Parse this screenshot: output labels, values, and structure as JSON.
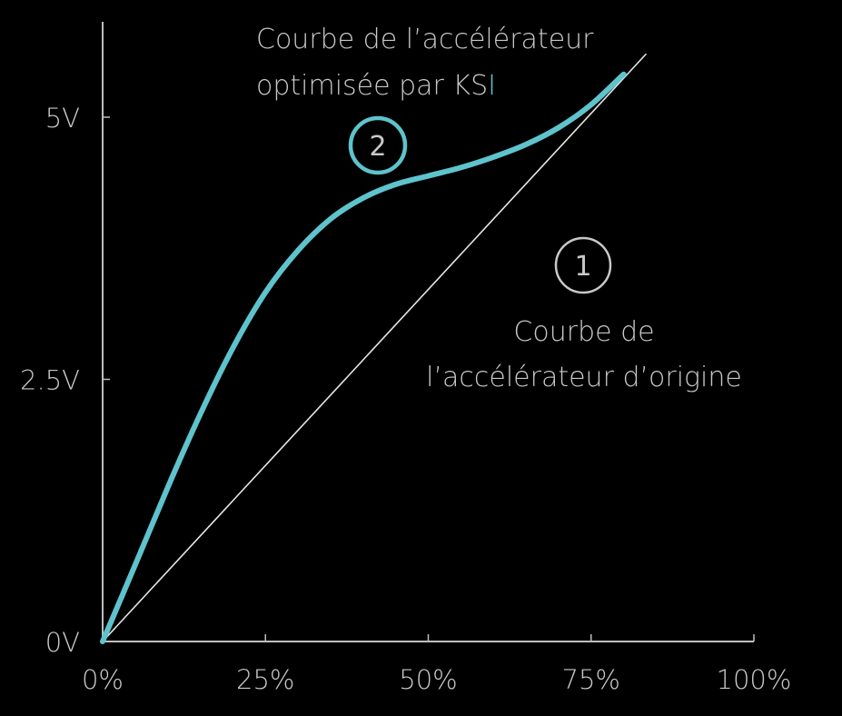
{
  "chart_data": {
    "type": "line",
    "title": "",
    "xlabel": "",
    "ylabel": "",
    "xlim": [
      0,
      100
    ],
    "ylim": [
      0,
      5.5
    ],
    "x_ticks": [
      {
        "value": 0,
        "label": "0%"
      },
      {
        "value": 25,
        "label": "25%"
      },
      {
        "value": 50,
        "label": "50%"
      },
      {
        "value": 75,
        "label": "75%"
      },
      {
        "value": 100,
        "label": "100%"
      }
    ],
    "y_ticks": [
      {
        "value": 0,
        "label": "0V"
      },
      {
        "value": 2.5,
        "label": "2.5V"
      },
      {
        "value": 5,
        "label": "5V"
      }
    ],
    "grid": false,
    "series": [
      {
        "id": "original",
        "color": "#e6e6e6",
        "x": [
          0,
          83.4
        ],
        "y": [
          0,
          5.6
        ]
      },
      {
        "id": "ksi",
        "color": "#5ec3cc",
        "x": [
          0,
          5,
          10,
          15,
          20,
          25,
          30,
          35,
          40,
          45,
          50,
          55,
          60,
          65,
          70,
          75,
          80
        ],
        "y": [
          0,
          0.73,
          1.47,
          2.17,
          2.8,
          3.33,
          3.73,
          4.03,
          4.23,
          4.36,
          4.44,
          4.52,
          4.62,
          4.74,
          4.9,
          5.12,
          5.41
        ]
      }
    ],
    "annotations": [
      {
        "id": "original",
        "badge": "1",
        "color": "#c8c8c8",
        "lines": [
          "Courbe de",
          "l’accélérateur d’origine"
        ]
      },
      {
        "id": "ksi",
        "badge": "2",
        "color": "#5ec3cc",
        "lines": [
          "Courbe de l’accélérateur",
          "optimisée par KS",
          "I"
        ]
      }
    ]
  }
}
